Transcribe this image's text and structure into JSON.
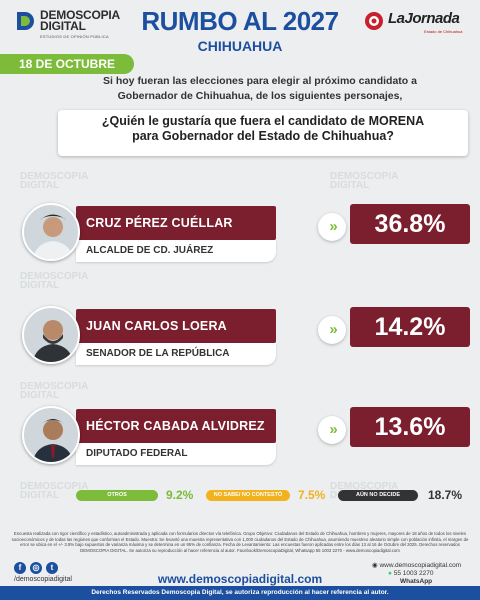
{
  "header": {
    "logo_title_line1": "DEMOSCOPIA",
    "logo_title_line2": "DIGITAL",
    "logo_subtitle": "ESTUDIOS DE OPINIÓN PÚBLICA",
    "title": "RUMBO AL 2027",
    "subtitle": "CHIHUAHUA",
    "partner_name": "LaJornada",
    "partner_tag": "Estado de Chihuahua",
    "date": "18 DE OCTUBRE"
  },
  "intro": {
    "line1": "Si hoy fueran las elecciones para elegir al próximo candidato a",
    "line2": "Gobernador de Chihuahua, de los siguientes personajes,"
  },
  "question": {
    "line1": "¿Quién le gustaría que fuera el candidato de MORENA",
    "line2": "para Gobernador del Estado de Chihuahua?"
  },
  "watermark": {
    "line1": "DEMOSCOPIA",
    "line2": "DIGITAL"
  },
  "candidates": [
    {
      "name": "CRUZ PÉREZ CUÉLLAR",
      "role": "ALCALDE DE CD. JUÁREZ",
      "percent": "36.8%"
    },
    {
      "name": "JUAN CARLOS LOERA",
      "role": "SENADOR DE LA REPÚBLICA",
      "percent": "14.2%"
    },
    {
      "name": "HÉCTOR CABADA ALVIDREZ",
      "role": "DIPUTADO FEDERAL",
      "percent": "13.6%"
    }
  ],
  "stats": [
    {
      "label": "OTROS",
      "value": "9.2%",
      "color": "#7dbb3a"
    },
    {
      "label": "NO SABE/ NO CONTESTÓ",
      "value": "7.5%",
      "color": "#f2b21d"
    },
    {
      "label": "AÚN NO DECIDE",
      "value": "18.7%",
      "color": "#333333"
    }
  ],
  "methodology": "Encuesta realizada con rigor científico y estadístico, autoadministrada y aplicada con formularios directos vía telefónica. Grupo Objetivo: Ciudadanos del Estado de Chihuahua, hombres y mujeres, mayores de 18 años de todos los niveles socioeconómicos y de todas las regiones que conforman el Estado. Muestra: Se levantó una muestra representativa con 1,000 ciudadanos del Estado de Chihuahua, asumiendo muestreo aleatorio simple con población infinita, el margen de error se ubica en el +/- 3.8% bajo supuestos de varianza máxima y se determina en un 95% de confianza. Fecha de Levantamiento: Las encuestas fueron aplicadas entre los días 13 al 16 de Octubre del 2025. Derechos reservados DEMOSCOPIA DIGITAL. Se autoriza su reproducción al hacer referencia al autor. Facebook/DemoscopiaDigital, Whatsapp 55 1003 2270 - www.demoscopiadigital.com",
  "social": {
    "handle": "/demoscopiadigital"
  },
  "website": "www.demoscopiadigital.com",
  "contact": {
    "email": "www.demoscopiadigital.com",
    "phone": "55 1003 2270",
    "whatsapp": "WhatsApp"
  },
  "footer": "Derechos Reservados Demoscopia Digital, se autoriza reproducción al hacer referencia al autor.",
  "colors": {
    "brand_blue": "#1d4fa0",
    "accent_green": "#7dbb3a",
    "candidate_maroon": "#7b1f2e"
  }
}
